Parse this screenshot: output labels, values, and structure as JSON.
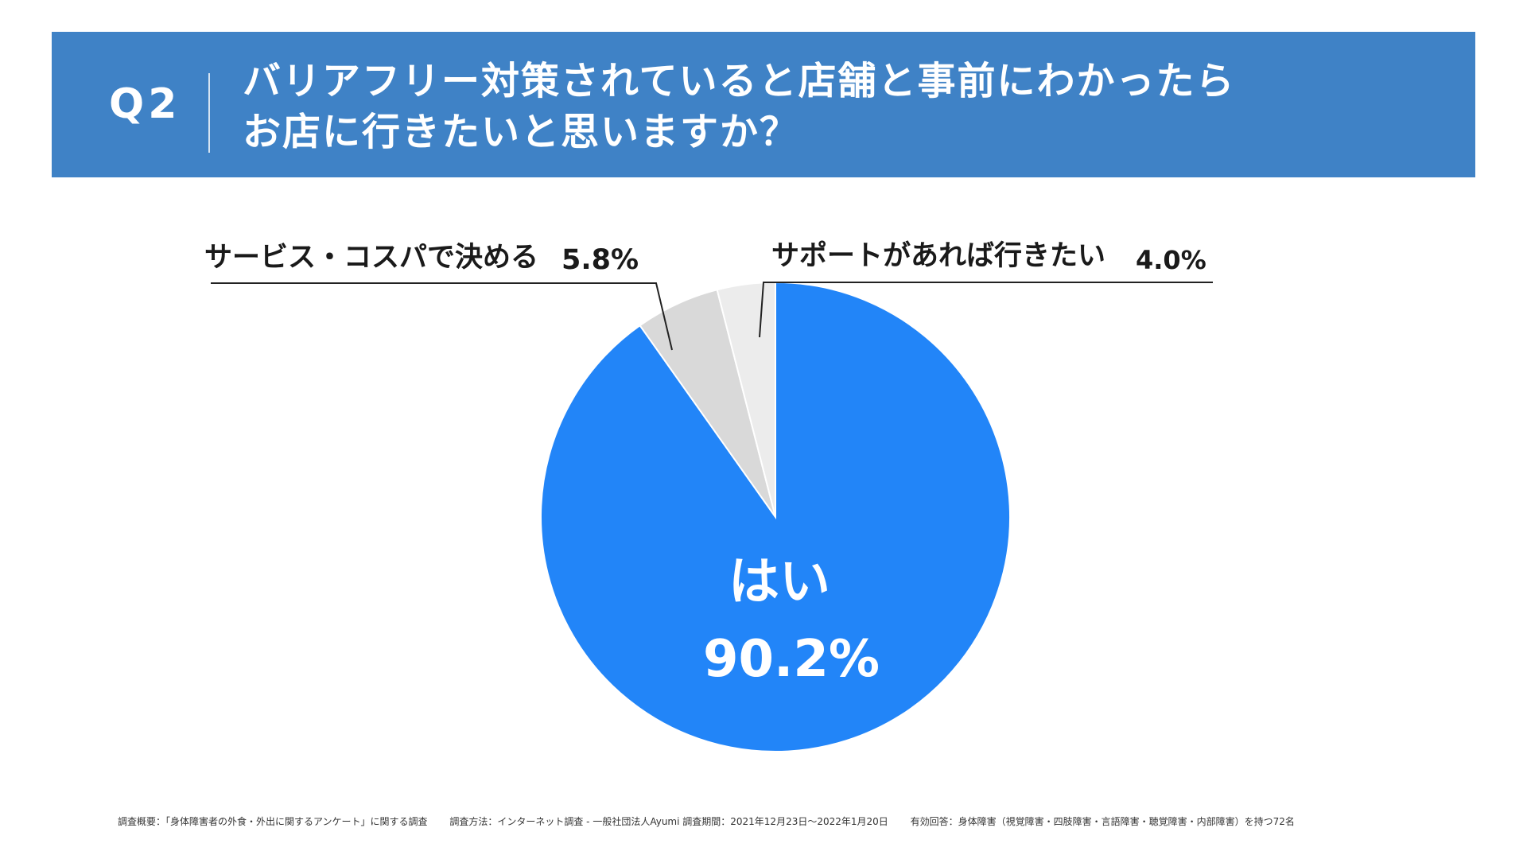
{
  "header": {
    "question_number": "Q2",
    "question_line1": "バリアフリー対策されていると店舗と事前にわかったら",
    "question_line2": "お店に行きたいと思いますか？",
    "background_color": "#3f82c6"
  },
  "chart_data": {
    "type": "pie",
    "title": "",
    "start": "12 o'clock, clockwise",
    "slices": [
      {
        "label": "はい",
        "value": 90.2,
        "value_label": "90.2%",
        "color": "#2285f8"
      },
      {
        "label": "サービス・コスパで決める",
        "value": 5.8,
        "value_label": "5.8%",
        "color": "#d9d9d9"
      },
      {
        "label": "サポートがあれば行きたい",
        "value": 4.0,
        "value_label": "4.0%",
        "color": "#ececec"
      }
    ]
  },
  "footer": {
    "overview": "調査概要：「身体障害者の外食・外出に関するアンケート」に関する調査",
    "method": "調査方法：インターネット調査 - 一般社団法人Ayumi 調査期間：2021年12月23日〜2022年1月20日",
    "respondents": "有効回答：身体障害（視覚障害・四肢障害・言語障害・聴覚障害・内部障害）を持つ72名"
  }
}
